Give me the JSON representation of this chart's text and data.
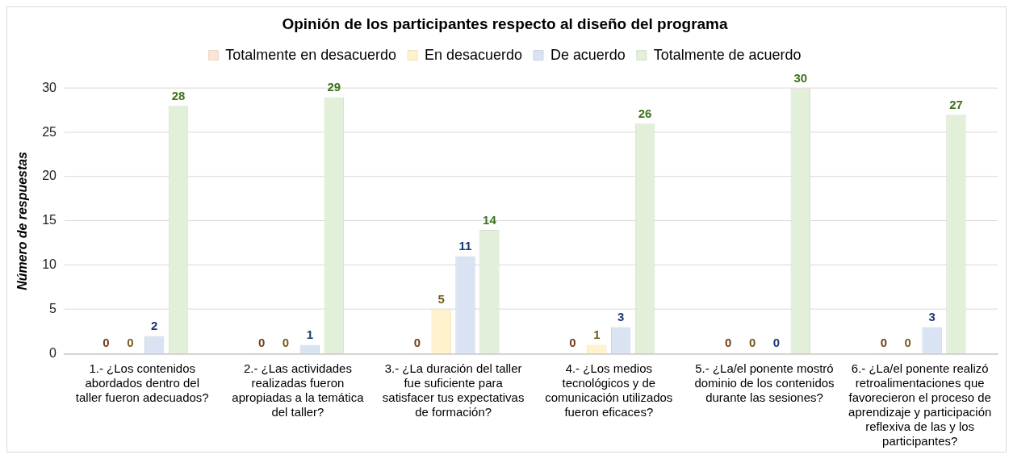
{
  "chart_data": {
    "type": "bar",
    "title": "Opinión de los participantes respecto al diseño del programa",
    "ylabel": "Número de respuestas",
    "categories": [
      "1.- ¿Los contenidos abordados dentro del taller fueron adecuados?",
      "2.- ¿Las actividades realizadas fueron apropiadas a la temática del taller?",
      "3.- ¿La duración del taller fue suficiente para satisfacer tus expectativas de formación?",
      "4.- ¿Los medios tecnológicos y de comunicación utilizados fueron eficaces?",
      "5.- ¿La/el ponente mostró dominio de los contenidos durante las sesiones?",
      "6.- ¿La/el ponente realizó retroalimentaciones que favorecieron el proceso de aprendizaje y participación reflexiva de las y los participantes?"
    ],
    "series": [
      {
        "name": "Totalmente en desacuerdo",
        "color": "#fbe5d6",
        "values": [
          0,
          0,
          0,
          0,
          0,
          0
        ]
      },
      {
        "name": "En desacuerdo",
        "color": "#fff2cc",
        "values": [
          0,
          0,
          5,
          1,
          0,
          0
        ]
      },
      {
        "name": "De acuerdo",
        "color": "#dae3f3",
        "values": [
          2,
          1,
          11,
          3,
          0,
          3
        ]
      },
      {
        "name": "Totalmente de acuerdo",
        "color": "#e2f0d9",
        "values": [
          28,
          29,
          14,
          26,
          30,
          27
        ]
      }
    ],
    "ylim": [
      0,
      30
    ],
    "yticks": [
      0,
      5,
      10,
      15,
      20,
      25,
      30
    ],
    "grid": "y",
    "legend": "top",
    "data_labels": true
  }
}
